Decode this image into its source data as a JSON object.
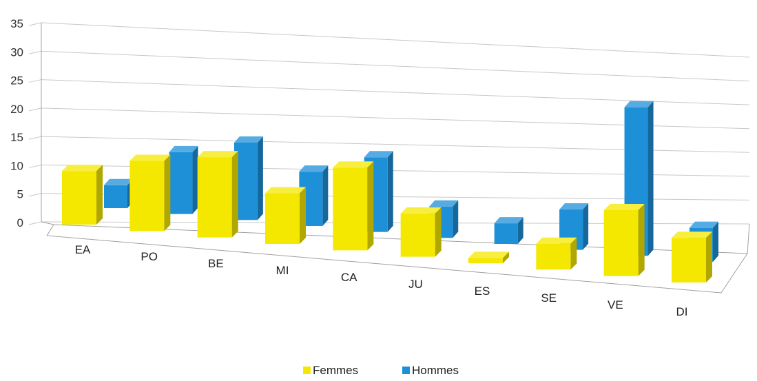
{
  "chart_data": {
    "type": "bar",
    "categories": [
      "EA",
      "PO",
      "BE",
      "MI",
      "CA",
      "JU",
      "ES",
      "SE",
      "VE",
      "DI"
    ],
    "series": [
      {
        "name": "Femmes",
        "color": "#f5e800",
        "values": [
          9,
          12,
          14,
          9,
          15,
          8,
          1,
          5,
          13,
          9
        ]
      },
      {
        "name": "Hommes",
        "color": "#1e90d8",
        "values": [
          4,
          11,
          14,
          10,
          14,
          6,
          4,
          8,
          30,
          7
        ]
      }
    ],
    "yticks": [
      0,
      5,
      10,
      15,
      20,
      25,
      30,
      35
    ],
    "ylim": [
      0,
      35
    ],
    "grid": true,
    "legend_position": "bottom-center",
    "projection": "3d-perspective"
  }
}
